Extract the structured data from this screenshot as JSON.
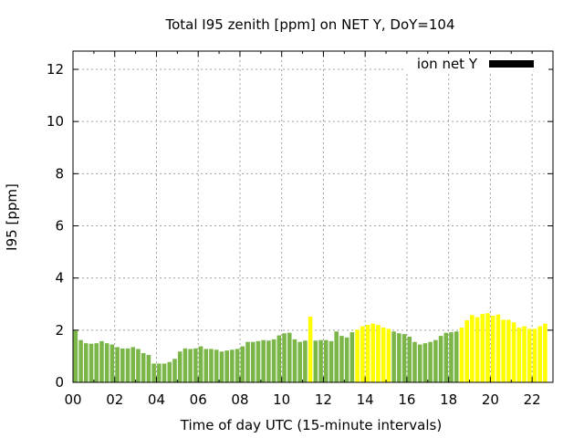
{
  "chart_data": {
    "type": "bar",
    "title": "Total I95 zenith [ppm] on NET Y, DoY=104",
    "xlabel": "Time of day UTC (15-minute intervals)",
    "ylabel": "I95 [ppm]",
    "legend": {
      "label": "ion net Y",
      "color": "#000000",
      "placement": "top-right"
    },
    "x_unit": "hours UTC",
    "xlim": [
      0,
      23
    ],
    "ylim": [
      0,
      12.7
    ],
    "x_ticks": [
      "00",
      "02",
      "04",
      "06",
      "08",
      "10",
      "12",
      "14",
      "16",
      "18",
      "20",
      "22"
    ],
    "y_ticks": [
      "0",
      "2",
      "4",
      "6",
      "8",
      "10",
      "12"
    ],
    "grid": true,
    "colors": {
      "normal": "#7ab648",
      "elevated": "#ffff00"
    },
    "bar_x": [
      0,
      0.25,
      0.5,
      0.75,
      1,
      1.25,
      1.5,
      1.75,
      2,
      2.25,
      2.5,
      2.75,
      3,
      3.25,
      3.5,
      3.75,
      4,
      4.25,
      4.5,
      4.75,
      5,
      5.25,
      5.5,
      5.75,
      6,
      6.25,
      6.5,
      6.75,
      7,
      7.25,
      7.5,
      7.75,
      8,
      8.25,
      8.5,
      8.75,
      9,
      9.25,
      9.5,
      9.75,
      10,
      10.25,
      10.5,
      10.75,
      11,
      11.25,
      11.5,
      11.75,
      12,
      12.25,
      12.5,
      12.75,
      13,
      13.25,
      13.5,
      13.75,
      14,
      14.25,
      14.5,
      14.75,
      15,
      15.25,
      15.5,
      15.75,
      16,
      16.25,
      16.5,
      16.75,
      17,
      17.25,
      17.5,
      17.75,
      18,
      18.25,
      18.5,
      18.75,
      19,
      19.25,
      19.5,
      19.75,
      20,
      20.25,
      20.5,
      20.75,
      21,
      21.25,
      21.5,
      21.75,
      22,
      22.25,
      22.5
    ],
    "values": [
      1.98,
      1.62,
      1.5,
      1.48,
      1.5,
      1.58,
      1.5,
      1.45,
      1.35,
      1.3,
      1.3,
      1.35,
      1.28,
      1.12,
      1.05,
      0.72,
      0.72,
      0.72,
      0.78,
      0.9,
      1.18,
      1.3,
      1.28,
      1.3,
      1.38,
      1.28,
      1.28,
      1.25,
      1.18,
      1.22,
      1.25,
      1.28,
      1.38,
      1.55,
      1.55,
      1.58,
      1.62,
      1.6,
      1.65,
      1.8,
      1.88,
      1.9,
      1.65,
      1.55,
      1.6,
      2.52,
      1.6,
      1.62,
      1.62,
      1.58,
      1.95,
      1.78,
      1.72,
      1.92,
      2.02,
      2.15,
      2.2,
      2.25,
      2.2,
      2.1,
      2.05,
      1.95,
      1.88,
      1.85,
      1.75,
      1.55,
      1.45,
      1.5,
      1.55,
      1.62,
      1.78,
      1.9,
      1.92,
      1.95,
      2.1,
      2.38,
      2.58,
      2.5,
      2.62,
      2.65,
      2.55,
      2.6,
      2.4,
      2.4,
      2.3,
      2.1,
      2.15,
      2.05,
      2.05,
      2.15,
      2.25
    ],
    "level": [
      "normal",
      "normal",
      "normal",
      "normal",
      "normal",
      "normal",
      "normal",
      "normal",
      "normal",
      "normal",
      "normal",
      "normal",
      "normal",
      "normal",
      "normal",
      "normal",
      "normal",
      "normal",
      "normal",
      "normal",
      "normal",
      "normal",
      "normal",
      "normal",
      "normal",
      "normal",
      "normal",
      "normal",
      "normal",
      "normal",
      "normal",
      "normal",
      "normal",
      "normal",
      "normal",
      "normal",
      "normal",
      "normal",
      "normal",
      "normal",
      "normal",
      "normal",
      "normal",
      "normal",
      "normal",
      "elevated",
      "normal",
      "normal",
      "normal",
      "normal",
      "normal",
      "normal",
      "normal",
      "normal",
      "elevated",
      "elevated",
      "elevated",
      "elevated",
      "elevated",
      "elevated",
      "elevated",
      "normal",
      "normal",
      "normal",
      "normal",
      "normal",
      "normal",
      "normal",
      "normal",
      "normal",
      "normal",
      "normal",
      "normal",
      "normal",
      "elevated",
      "elevated",
      "elevated",
      "elevated",
      "elevated",
      "elevated",
      "elevated",
      "elevated",
      "elevated",
      "elevated",
      "elevated",
      "elevated",
      "elevated",
      "elevated",
      "elevated",
      "elevated",
      "elevated"
    ]
  }
}
